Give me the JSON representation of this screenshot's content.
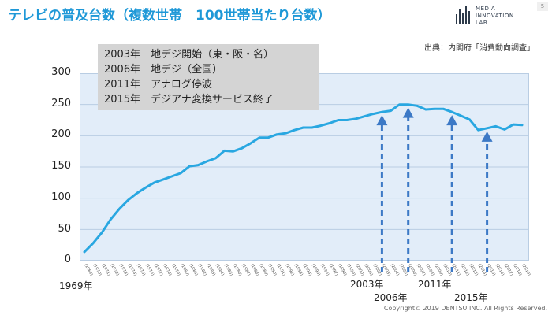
{
  "header": {
    "title": "テレビの普及台数（複数世帯　100世帯当たり台数）",
    "page_number": "5",
    "logo_lines": [
      "MEDIA",
      "INNOVATION",
      "LAB"
    ]
  },
  "source": "出典：内閣府「消費動向調査」",
  "annotations": [
    "2003年　地デジ開始（東・阪・名）",
    "2006年　地デジ（全国）",
    "2011年　アナログ停波",
    "2015年　デジアナ変換サービス終了"
  ],
  "year_labels": {
    "start": "1969年",
    "y2003": "2003年",
    "y2006": "2006年",
    "y2011": "2011年",
    "y2015": "2015年"
  },
  "copyright": "Copyright© 2019 DENTSU INC. All Rights Reserved.",
  "colors": {
    "line": "#29a7e1",
    "arrow": "#3c79c6",
    "plot_bg": "#e2edf9",
    "title": "#1e98d7"
  },
  "chart_data": {
    "type": "line",
    "title": "",
    "xlabel": "",
    "ylabel": "",
    "ylim": [
      0,
      300
    ],
    "yticks": [
      0,
      50,
      100,
      150,
      200,
      250,
      300
    ],
    "grid": true,
    "x": [
      1969,
      1970,
      1971,
      1972,
      1973,
      1974,
      1975,
      1976,
      1977,
      1978,
      1979,
      1980,
      1981,
      1982,
      1983,
      1984,
      1985,
      1986,
      1987,
      1988,
      1989,
      1990,
      1991,
      1992,
      1993,
      1994,
      1995,
      1996,
      1997,
      1998,
      1999,
      2000,
      2001,
      2002,
      2003,
      2004,
      2005,
      2006,
      2007,
      2008,
      2009,
      2010,
      2011,
      2012,
      2013,
      2014,
      2015,
      2016,
      2017,
      2018,
      2019
    ],
    "series": [
      {
        "values": [
          14,
          28,
          45,
          66,
          83,
          97,
          108,
          117,
          125,
          130,
          135,
          140,
          151,
          153,
          159,
          164,
          176,
          175,
          180,
          188,
          197,
          197,
          202,
          204,
          209,
          213,
          213,
          216,
          220,
          225,
          225,
          227,
          231,
          235,
          238,
          240,
          250,
          250,
          248,
          242,
          243,
          243,
          238,
          232,
          226,
          209,
          212,
          215,
          210,
          218,
          217
        ]
      }
    ],
    "markers": [
      {
        "year": 2003,
        "label": "2003年"
      },
      {
        "year": 2006,
        "label": "2006年"
      },
      {
        "year": 2011,
        "label": "2011年"
      },
      {
        "year": 2015,
        "label": "2015年"
      }
    ]
  }
}
